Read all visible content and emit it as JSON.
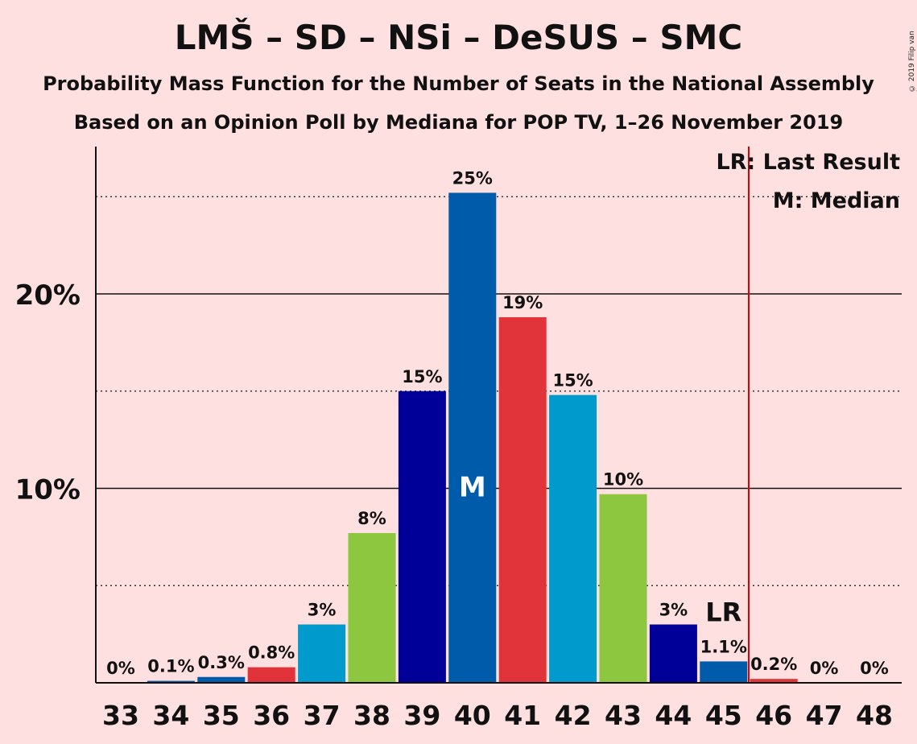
{
  "title": "LMŠ – SD – NSi – DeSUS – SMC",
  "subtitle_1": "Probability Mass Function for the Number of Seats in the National Assembly",
  "subtitle_2": "Based on an Opinion Poll by Mediana for POP TV, 1–26 November 2019",
  "copyright": "© 2019 Filip van Laenen",
  "legend": {
    "last_result": "LR: Last Result",
    "median": "M: Median"
  },
  "colors": {
    "background": "#FFE0E0",
    "party_blue_dark": "#000099",
    "party_blue": "#005BAA",
    "party_red": "#E0333A",
    "party_cyan": "#009BCC",
    "party_green": "#8DC63F",
    "last_result_line": "#DD0000"
  },
  "chart_data": {
    "type": "bar",
    "categories": [
      "33",
      "34",
      "35",
      "36",
      "37",
      "38",
      "39",
      "40",
      "41",
      "42",
      "43",
      "44",
      "45",
      "46",
      "47",
      "48"
    ],
    "values": [
      0,
      0.1,
      0.3,
      0.8,
      3,
      7.7,
      15,
      25.2,
      18.8,
      14.8,
      9.7,
      3,
      1.1,
      0.2,
      0,
      0
    ],
    "value_labels": [
      "0%",
      "0.1%",
      "0.3%",
      "0.8%",
      "3%",
      "8%",
      "15%",
      "25%",
      "19%",
      "15%",
      "10%",
      "3%",
      "1.1%",
      "0.2%",
      "0%",
      "0%"
    ],
    "bar_colors": [
      "#000099",
      "#005BAA",
      "#005BAA",
      "#E0333A",
      "#009BCC",
      "#8DC63F",
      "#000099",
      "#005BAA",
      "#E0333A",
      "#009BCC",
      "#8DC63F",
      "#000099",
      "#005BAA",
      "#E0333A",
      "#009BCC",
      "#8DC63F"
    ],
    "ylim": [
      0,
      27.5
    ],
    "y_ticks": [
      10,
      20
    ],
    "y_tick_labels": [
      "10%",
      "20%"
    ],
    "minor_gridlines": [
      5,
      15,
      25
    ],
    "median_seat": "40",
    "median_marker": "M",
    "last_result_seat": "45",
    "last_result_marker": "LR",
    "majority_line_after": "45",
    "xlabel": "",
    "ylabel": ""
  }
}
